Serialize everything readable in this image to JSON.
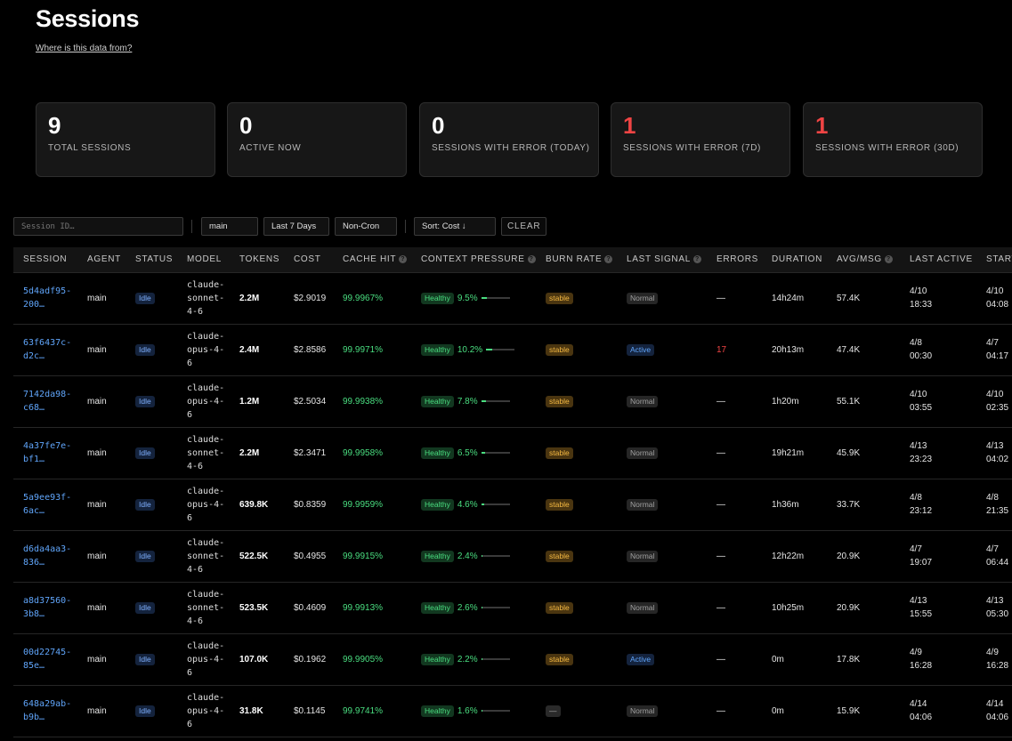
{
  "header": {
    "title": "Sessions",
    "source_link": "Where is this data from?"
  },
  "stats": [
    {
      "value": "9",
      "label": "TOTAL SESSIONS",
      "alert": false
    },
    {
      "value": "0",
      "label": "ACTIVE NOW",
      "alert": false
    },
    {
      "value": "0",
      "label": "SESSIONS WITH ERROR (TODAY)",
      "alert": false
    },
    {
      "value": "1",
      "label": "SESSIONS WITH ERROR (7D)",
      "alert": true
    },
    {
      "value": "1",
      "label": "SESSIONS WITH ERROR (30D)",
      "alert": true
    }
  ],
  "filters": {
    "session_placeholder": "Session ID…",
    "agent": "main",
    "range": "Last 7 Days",
    "cron": "Non-Cron",
    "sort": "Sort: Cost ↓",
    "clear": "CLEAR"
  },
  "columns": [
    "SESSION",
    "AGENT",
    "STATUS",
    "MODEL",
    "TOKENS",
    "COST",
    "CACHE HIT",
    "CONTEXT PRESSURE",
    "BURN RATE",
    "LAST SIGNAL",
    "ERRORS",
    "DURATION",
    "AVG/MSG",
    "LAST ACTIVE",
    "STARTED"
  ],
  "help_columns": [
    "CACHE HIT",
    "CONTEXT PRESSURE",
    "BURN RATE",
    "LAST SIGNAL",
    "AVG/MSG"
  ],
  "colors": {
    "accent": "#60a5fa",
    "healthy": "#4ade80",
    "error": "#ef4444",
    "stable": "#f5b942"
  },
  "rows": [
    {
      "session": [
        "5d4adf95-",
        "200…"
      ],
      "agent": "main",
      "status": "Idle",
      "model": [
        "claude-",
        "sonnet-",
        "4-6"
      ],
      "tokens": "2.2M",
      "cost": "$2.9019",
      "cache": "99.9967%",
      "health": "Healthy",
      "pressure": "9.5%",
      "pressure_value": 9.5,
      "burn": "stable",
      "signal": "Normal",
      "errors": "—",
      "duration": "14h24m",
      "avg": "57.4K",
      "last_active": [
        "4/10",
        "18:33"
      ],
      "started": [
        "4/10",
        "04:08"
      ]
    },
    {
      "session": [
        "63f6437c-",
        "d2c…"
      ],
      "agent": "main",
      "status": "Idle",
      "model": [
        "claude-",
        "opus-4-",
        "6"
      ],
      "tokens": "2.4M",
      "cost": "$2.8586",
      "cache": "99.9971%",
      "health": "Healthy",
      "pressure": "10.2%",
      "pressure_value": 10.2,
      "burn": "stable",
      "signal": "Active",
      "errors": "17",
      "duration": "20h13m",
      "avg": "47.4K",
      "last_active": [
        "4/8",
        "00:30"
      ],
      "started": [
        "4/7",
        "04:17"
      ]
    },
    {
      "session": [
        "7142da98-",
        "c68…"
      ],
      "agent": "main",
      "status": "Idle",
      "model": [
        "claude-",
        "opus-4-",
        "6"
      ],
      "tokens": "1.2M",
      "cost": "$2.5034",
      "cache": "99.9938%",
      "health": "Healthy",
      "pressure": "7.8%",
      "pressure_value": 7.8,
      "burn": "stable",
      "signal": "Normal",
      "errors": "—",
      "duration": "1h20m",
      "avg": "55.1K",
      "last_active": [
        "4/10",
        "03:55"
      ],
      "started": [
        "4/10",
        "02:35"
      ]
    },
    {
      "session": [
        "4a37fe7e-",
        "bf1…"
      ],
      "agent": "main",
      "status": "Idle",
      "model": [
        "claude-",
        "sonnet-",
        "4-6"
      ],
      "tokens": "2.2M",
      "cost": "$2.3471",
      "cache": "99.9958%",
      "health": "Healthy",
      "pressure": "6.5%",
      "pressure_value": 6.5,
      "burn": "stable",
      "signal": "Normal",
      "errors": "—",
      "duration": "19h21m",
      "avg": "45.9K",
      "last_active": [
        "4/13",
        "23:23"
      ],
      "started": [
        "4/13",
        "04:02"
      ]
    },
    {
      "session": [
        "5a9ee93f-",
        "6ac…"
      ],
      "agent": "main",
      "status": "Idle",
      "model": [
        "claude-",
        "opus-4-",
        "6"
      ],
      "tokens": "639.8K",
      "cost": "$0.8359",
      "cache": "99.9959%",
      "health": "Healthy",
      "pressure": "4.6%",
      "pressure_value": 4.6,
      "burn": "stable",
      "signal": "Normal",
      "errors": "—",
      "duration": "1h36m",
      "avg": "33.7K",
      "last_active": [
        "4/8",
        "23:12"
      ],
      "started": [
        "4/8",
        "21:35"
      ]
    },
    {
      "session": [
        "d6da4aa3-",
        "836…"
      ],
      "agent": "main",
      "status": "Idle",
      "model": [
        "claude-",
        "sonnet-",
        "4-6"
      ],
      "tokens": "522.5K",
      "cost": "$0.4955",
      "cache": "99.9915%",
      "health": "Healthy",
      "pressure": "2.4%",
      "pressure_value": 2.4,
      "burn": "stable",
      "signal": "Normal",
      "errors": "—",
      "duration": "12h22m",
      "avg": "20.9K",
      "last_active": [
        "4/7",
        "19:07"
      ],
      "started": [
        "4/7",
        "06:44"
      ]
    },
    {
      "session": [
        "a8d37560-",
        "3b8…"
      ],
      "agent": "main",
      "status": "Idle",
      "model": [
        "claude-",
        "sonnet-",
        "4-6"
      ],
      "tokens": "523.5K",
      "cost": "$0.4609",
      "cache": "99.9913%",
      "health": "Healthy",
      "pressure": "2.6%",
      "pressure_value": 2.6,
      "burn": "stable",
      "signal": "Normal",
      "errors": "—",
      "duration": "10h25m",
      "avg": "20.9K",
      "last_active": [
        "4/13",
        "15:55"
      ],
      "started": [
        "4/13",
        "05:30"
      ]
    },
    {
      "session": [
        "00d22745-",
        "85e…"
      ],
      "agent": "main",
      "status": "Idle",
      "model": [
        "claude-",
        "opus-4-",
        "6"
      ],
      "tokens": "107.0K",
      "cost": "$0.1962",
      "cache": "99.9905%",
      "health": "Healthy",
      "pressure": "2.2%",
      "pressure_value": 2.2,
      "burn": "stable",
      "signal": "Active",
      "errors": "—",
      "duration": "0m",
      "avg": "17.8K",
      "last_active": [
        "4/9",
        "16:28"
      ],
      "started": [
        "4/9",
        "16:28"
      ]
    },
    {
      "session": [
        "648a29ab-",
        "b9b…"
      ],
      "agent": "main",
      "status": "Idle",
      "model": [
        "claude-",
        "opus-4-",
        "6"
      ],
      "tokens": "31.8K",
      "cost": "$0.1145",
      "cache": "99.9741%",
      "health": "Healthy",
      "pressure": "1.6%",
      "pressure_value": 1.6,
      "burn": "—",
      "signal": "Normal",
      "errors": "—",
      "duration": "0m",
      "avg": "15.9K",
      "last_active": [
        "4/14",
        "04:06"
      ],
      "started": [
        "4/14",
        "04:06"
      ]
    }
  ]
}
